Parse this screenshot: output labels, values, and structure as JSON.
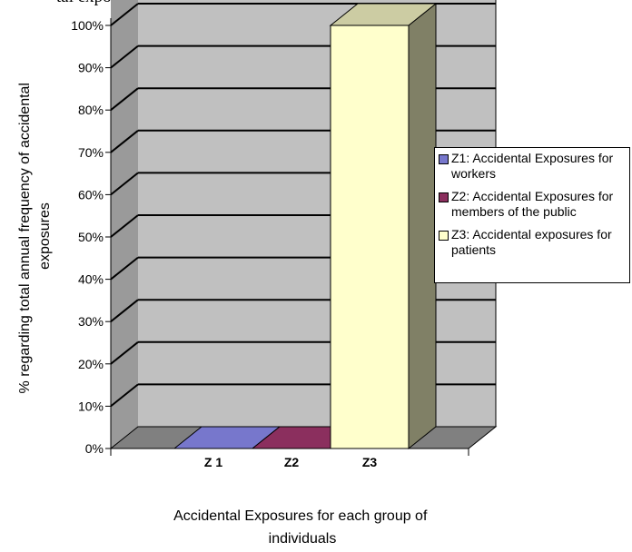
{
  "header_text": "tal exposures during each of the time i",
  "chart_data": {
    "type": "bar",
    "title": "",
    "categories": [
      "Z 1",
      "Z2",
      "Z3"
    ],
    "values": [
      0,
      0,
      100
    ],
    "colors": [
      "#7777cc",
      "#8b2f5e",
      "#ffffcc"
    ],
    "ylabel": "% regarding total annual frequency of accidental exposures",
    "xlabel": "Accidental Exposures for each  group of individuals",
    "ylim": [
      0,
      100
    ],
    "y_ticks": [
      "0%",
      "10%",
      "20%",
      "30%",
      "40%",
      "50%",
      "60%",
      "70%",
      "80%",
      "90%",
      "100%"
    ],
    "grid": true,
    "legend_position": "right",
    "legend": [
      {
        "label": "Z1: Accidental Exposures for workers",
        "color": "#7777cc"
      },
      {
        "label": "Z2: Accidental Exposures for members of the public",
        "color": "#8b2f5e"
      },
      {
        "label": "Z3: Accidental exposures for patients",
        "color": "#ffffcc"
      }
    ]
  }
}
